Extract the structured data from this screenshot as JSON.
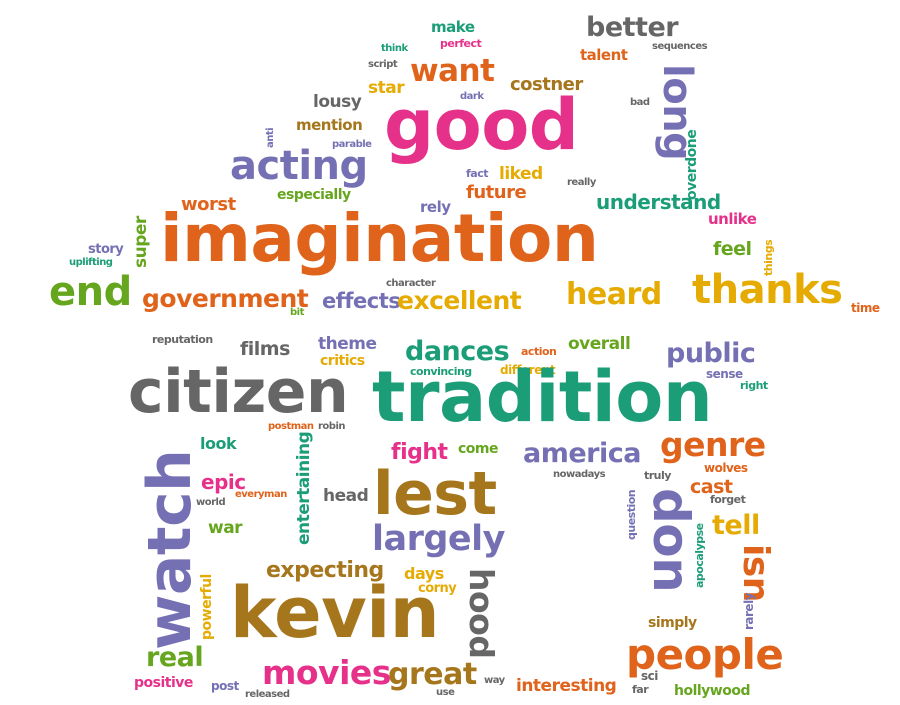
{
  "palette": {
    "orange": "#e0631b",
    "pink": "#e6318a",
    "green": "#1b9e77",
    "purple": "#7570b3",
    "lime": "#66a61e",
    "gold": "#e6ab02",
    "brown": "#a6761d",
    "gray": "#666666"
  },
  "words": [
    {
      "text": "make",
      "color": "green"
    },
    {
      "text": "perfect",
      "color": "pink"
    },
    {
      "text": "think",
      "color": "green"
    },
    {
      "text": "script",
      "color": "gray"
    },
    {
      "text": "better",
      "color": "gray"
    },
    {
      "text": "talent",
      "color": "orange"
    },
    {
      "text": "sequences",
      "color": "gray"
    },
    {
      "text": "want",
      "color": "orange"
    },
    {
      "text": "costner",
      "color": "brown"
    },
    {
      "text": "star",
      "color": "gold"
    },
    {
      "text": "dark",
      "color": "purple"
    },
    {
      "text": "bad",
      "color": "gray"
    },
    {
      "text": "lousy",
      "color": "gray"
    },
    {
      "text": "good",
      "color": "pink"
    },
    {
      "text": "long",
      "color": "purple"
    },
    {
      "text": "overdone",
      "color": "green"
    },
    {
      "text": "mention",
      "color": "brown"
    },
    {
      "text": "anti",
      "color": "purple"
    },
    {
      "text": "parable",
      "color": "purple"
    },
    {
      "text": "acting",
      "color": "purple"
    },
    {
      "text": "fact",
      "color": "purple"
    },
    {
      "text": "liked",
      "color": "gold"
    },
    {
      "text": "really",
      "color": "gray"
    },
    {
      "text": "especially",
      "color": "lime"
    },
    {
      "text": "future",
      "color": "orange"
    },
    {
      "text": "worst",
      "color": "orange"
    },
    {
      "text": "rely",
      "color": "purple"
    },
    {
      "text": "understand",
      "color": "green"
    },
    {
      "text": "unlike",
      "color": "pink"
    },
    {
      "text": "super",
      "color": "lime"
    },
    {
      "text": "story",
      "color": "purple"
    },
    {
      "text": "uplifting",
      "color": "green"
    },
    {
      "text": "imagination",
      "color": "orange"
    },
    {
      "text": "feel",
      "color": "lime"
    },
    {
      "text": "things",
      "color": "gold"
    },
    {
      "text": "character",
      "color": "gray"
    },
    {
      "text": "end",
      "color": "lime"
    },
    {
      "text": "government",
      "color": "orange"
    },
    {
      "text": "bit",
      "color": "lime"
    },
    {
      "text": "effects",
      "color": "purple"
    },
    {
      "text": "excellent",
      "color": "gold"
    },
    {
      "text": "heard",
      "color": "gold"
    },
    {
      "text": "thanks",
      "color": "gold"
    },
    {
      "text": "time",
      "color": "orange"
    },
    {
      "text": "reputation",
      "color": "gray"
    },
    {
      "text": "films",
      "color": "gray"
    },
    {
      "text": "theme",
      "color": "purple"
    },
    {
      "text": "critics",
      "color": "gold"
    },
    {
      "text": "dances",
      "color": "green"
    },
    {
      "text": "action",
      "color": "orange"
    },
    {
      "text": "overall",
      "color": "lime"
    },
    {
      "text": "public",
      "color": "purple"
    },
    {
      "text": "convincing",
      "color": "green"
    },
    {
      "text": "different",
      "color": "gold"
    },
    {
      "text": "sense",
      "color": "purple"
    },
    {
      "text": "right",
      "color": "green"
    },
    {
      "text": "citizen",
      "color": "gray"
    },
    {
      "text": "tradition",
      "color": "green"
    },
    {
      "text": "postman",
      "color": "orange"
    },
    {
      "text": "robin",
      "color": "gray"
    },
    {
      "text": "look",
      "color": "green"
    },
    {
      "text": "fight",
      "color": "pink"
    },
    {
      "text": "come",
      "color": "lime"
    },
    {
      "text": "america",
      "color": "purple"
    },
    {
      "text": "genre",
      "color": "orange"
    },
    {
      "text": "watch",
      "color": "purple"
    },
    {
      "text": "entertaining",
      "color": "green"
    },
    {
      "text": "nowadays",
      "color": "gray"
    },
    {
      "text": "truly",
      "color": "gray"
    },
    {
      "text": "wolves",
      "color": "orange"
    },
    {
      "text": "epic",
      "color": "pink"
    },
    {
      "text": "everyman",
      "color": "orange"
    },
    {
      "text": "world",
      "color": "gray"
    },
    {
      "text": "head",
      "color": "gray"
    },
    {
      "text": "lest",
      "color": "brown"
    },
    {
      "text": "cast",
      "color": "orange"
    },
    {
      "text": "forget",
      "color": "gray"
    },
    {
      "text": "war",
      "color": "lime"
    },
    {
      "text": "question",
      "color": "purple"
    },
    {
      "text": "tell",
      "color": "gold"
    },
    {
      "text": "largely",
      "color": "purple"
    },
    {
      "text": "don",
      "color": "purple"
    },
    {
      "text": "apocalypse",
      "color": "green"
    },
    {
      "text": "powerful",
      "color": "gold"
    },
    {
      "text": "expecting",
      "color": "brown"
    },
    {
      "text": "days",
      "color": "gold"
    },
    {
      "text": "corny",
      "color": "gold"
    },
    {
      "text": "hood",
      "color": "gray"
    },
    {
      "text": "isn",
      "color": "orange"
    },
    {
      "text": "rarely",
      "color": "purple"
    },
    {
      "text": "kevin",
      "color": "brown"
    },
    {
      "text": "simply",
      "color": "brown"
    },
    {
      "text": "real",
      "color": "lime"
    },
    {
      "text": "movies",
      "color": "pink"
    },
    {
      "text": "great",
      "color": "brown"
    },
    {
      "text": "people",
      "color": "orange"
    },
    {
      "text": "positive",
      "color": "pink"
    },
    {
      "text": "post",
      "color": "purple"
    },
    {
      "text": "released",
      "color": "gray"
    },
    {
      "text": "use",
      "color": "gray"
    },
    {
      "text": "way",
      "color": "gray"
    },
    {
      "text": "interesting",
      "color": "orange"
    },
    {
      "text": "sci",
      "color": "gray"
    },
    {
      "text": "far",
      "color": "gray"
    },
    {
      "text": "hollywood",
      "color": "lime"
    }
  ]
}
